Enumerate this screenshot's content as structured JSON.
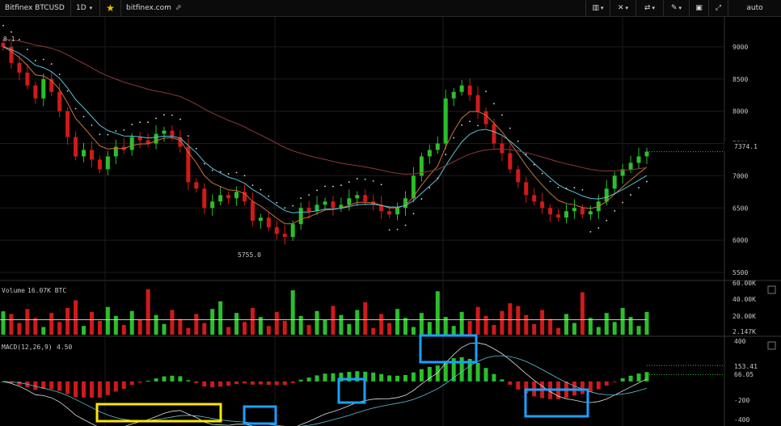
{
  "topbar": {
    "symbol": "Bitfinex BTCUSD",
    "interval": "1D",
    "star": "★",
    "site": "bitfinex.com",
    "scale_mode": "auto"
  },
  "colors": {
    "up": "#2bbf2b",
    "down": "#d01a1a",
    "ema_fast": "#c8733a",
    "ema_slow": "#5fc1d6",
    "ma_long": "#8b3a3a",
    "psar": "#dcdcdc",
    "highlight_yellow": "#ffe600",
    "highlight_blue": "#1aa0ff"
  },
  "chart_data": [
    {
      "type": "candlestick",
      "title": "Bitfinex BTCUSD 1D",
      "y_ticks": [
        5500,
        6000,
        6500,
        7000,
        7500,
        8000,
        8500,
        9000
      ],
      "ylim": [
        5400,
        9350
      ],
      "top_left_value_label": "8.1",
      "last_price_label": "7374.1",
      "low_label": "5755.0",
      "closes": [
        9000,
        8750,
        8600,
        8400,
        8200,
        8500,
        8300,
        8000,
        7600,
        7300,
        7400,
        7250,
        7100,
        7300,
        7450,
        7400,
        7600,
        7550,
        7500,
        7650,
        7700,
        7600,
        7450,
        6900,
        6800,
        6500,
        6600,
        6700,
        6650,
        6750,
        6600,
        6300,
        6350,
        6200,
        6100,
        6050,
        6250,
        6500,
        6450,
        6550,
        6600,
        6500,
        6550,
        6650,
        6700,
        6600,
        6550,
        6450,
        6400,
        6500,
        6650,
        7000,
        7300,
        7400,
        7500,
        8200,
        8300,
        8400,
        8250,
        8000,
        7800,
        7500,
        7350,
        7100,
        6900,
        6700,
        6600,
        6500,
        6400,
        6350,
        6450,
        6500,
        6400,
        6450,
        6600,
        6800,
        7000,
        7100,
        7200,
        7300,
        7374.1
      ],
      "indicators": [
        "EMA fast",
        "EMA slow",
        "MA long",
        "Parabolic SAR"
      ]
    },
    {
      "type": "bar",
      "title": "Volume",
      "value_label": "16.07K BTC",
      "y_ticks": [
        "60.00K",
        "40.00K",
        "20.00K"
      ],
      "last_value_label": "2.147K",
      "ylim": [
        0,
        62000
      ]
    },
    {
      "type": "bar",
      "title": "MACD(12,26,9)",
      "value_label": "4.50",
      "y_ticks": [
        400,
        -200,
        -400
      ],
      "labels": [
        "153.41",
        "66.05"
      ],
      "ylim": [
        -430,
        420
      ]
    }
  ]
}
